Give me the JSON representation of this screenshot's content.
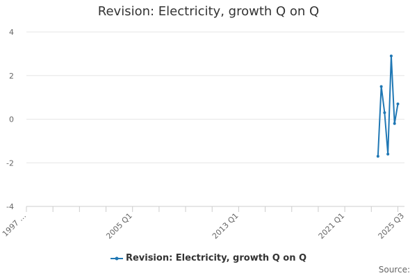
{
  "chart_data": {
    "type": "line",
    "title": "Revision: Electricity, growth Q on Q",
    "xlabel": "",
    "ylabel": "",
    "ylim": [
      -4,
      4
    ],
    "y_ticks": [
      4,
      2,
      0,
      -2,
      -4
    ],
    "x_tick_labels": [
      "1997 …",
      "2005 Q1",
      "2013 Q1",
      "2021 Q1",
      "2025 Q3"
    ],
    "grid": true,
    "legend_position": "bottom",
    "series": [
      {
        "name": "Revision: Electricity, growth Q on Q",
        "color": "#1f77b4",
        "x": [
          "2023 Q3",
          "2023 Q4",
          "2024 Q1",
          "2024 Q2",
          "2024 Q3",
          "2024 Q4",
          "2025 Q1",
          "2025 Q2"
        ],
        "values": [
          -1.7,
          1.5,
          0.3,
          -1.6,
          2.9,
          -0.2,
          0.7,
          null
        ]
      }
    ]
  },
  "legend": {
    "label": "Revision: Electricity, growth Q on Q"
  },
  "source_label": "Source:"
}
